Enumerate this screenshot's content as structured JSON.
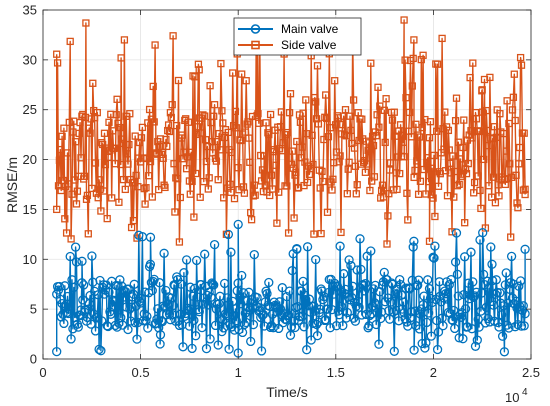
{
  "chart_data": {
    "type": "line",
    "title": "",
    "xlabel": "Time/s",
    "ylabel": "RMSE/m",
    "x_exponent_label": "10",
    "x_exponent_power": "4",
    "xlim": [
      0,
      25000
    ],
    "ylim": [
      0,
      35
    ],
    "x_ticks": [
      0,
      5000,
      10000,
      15000,
      20000,
      25000
    ],
    "x_tick_labels": [
      "0",
      "0.5",
      "1",
      "1.5",
      "2",
      "2.5"
    ],
    "y_ticks": [
      0,
      5,
      10,
      15,
      20,
      25,
      30,
      35
    ],
    "y_tick_labels": [
      "0",
      "5",
      "10",
      "15",
      "20",
      "25",
      "30",
      "35"
    ],
    "grid": true,
    "legend_position": "top-center",
    "series": [
      {
        "name": "Main valve",
        "color": "#0072BD",
        "marker": "circle",
        "x_range": [
          700,
          24700
        ],
        "typical_range": [
          3,
          8
        ],
        "min": 0.6,
        "max": 13.5,
        "sample_points": [
          {
            "x": 700,
            "y": 6.5
          },
          {
            "x": 2000,
            "y": 9.8
          },
          {
            "x": 5500,
            "y": 9.5
          },
          {
            "x": 6000,
            "y": 1.5
          },
          {
            "x": 9500,
            "y": 12.5
          },
          {
            "x": 10000,
            "y": 0.6
          },
          {
            "x": 10000,
            "y": 13.5
          },
          {
            "x": 13000,
            "y": 11.0
          },
          {
            "x": 19000,
            "y": 11.8
          },
          {
            "x": 23000,
            "y": 9.5
          },
          {
            "x": 24700,
            "y": 11.0
          }
        ]
      },
      {
        "name": "Side valve",
        "color": "#D95319",
        "marker": "square",
        "x_range": [
          700,
          24700
        ],
        "typical_range": [
          16,
          25
        ],
        "min": 11.5,
        "max": 34.0,
        "sample_points": [
          {
            "x": 700,
            "y": 15.0
          },
          {
            "x": 2200,
            "y": 33.7
          },
          {
            "x": 4000,
            "y": 30.2
          },
          {
            "x": 8000,
            "y": 29.0
          },
          {
            "x": 11000,
            "y": 31.5
          },
          {
            "x": 18500,
            "y": 34.0
          },
          {
            "x": 19000,
            "y": 32.0
          },
          {
            "x": 19800,
            "y": 11.8
          },
          {
            "x": 22500,
            "y": 27.0
          },
          {
            "x": 24700,
            "y": 16.5
          }
        ]
      }
    ]
  }
}
